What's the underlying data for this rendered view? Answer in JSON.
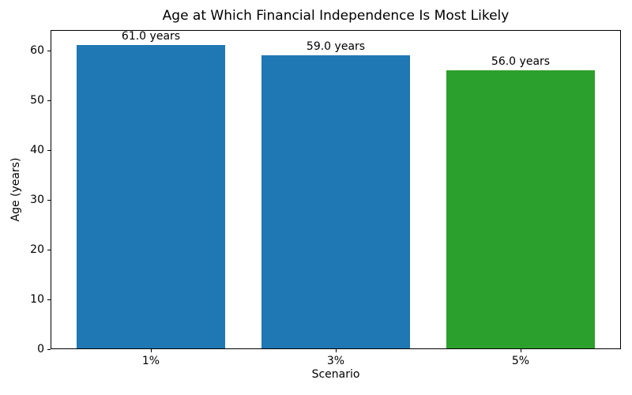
{
  "chart_data": {
    "type": "bar",
    "title": "Age at Which Financial Independence Is Most Likely",
    "xlabel": "Scenario",
    "ylabel": "Age (years)",
    "categories": [
      "1%",
      "3%",
      "5%"
    ],
    "values": [
      61.0,
      59.0,
      56.0
    ],
    "bar_labels": [
      "61.0 years",
      "59.0 years",
      "56.0 years"
    ],
    "bar_colors": [
      "#1f77b4",
      "#1f77b4",
      "#2ca02c"
    ],
    "ylim": [
      0,
      64.05
    ],
    "yticks": [
      0,
      10,
      20,
      30,
      40,
      50,
      60
    ],
    "grid": false,
    "legend": false,
    "background_color": "#ffffff",
    "axis_color": "#000000"
  }
}
